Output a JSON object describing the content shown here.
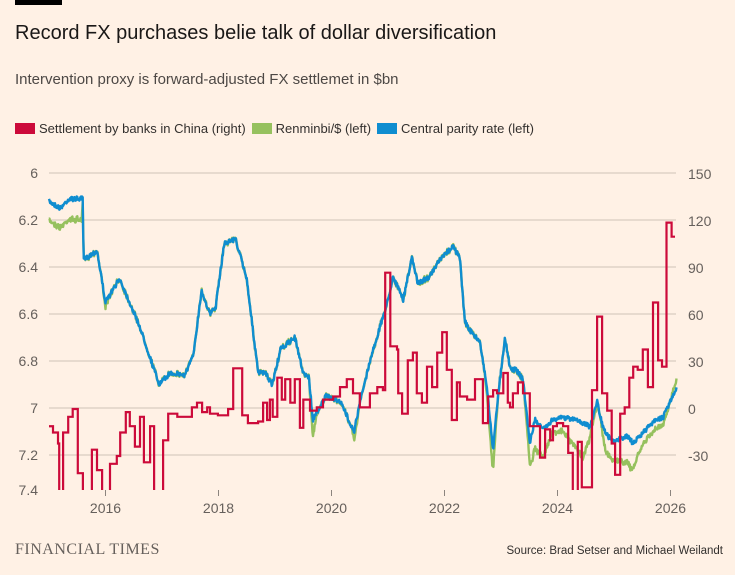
{
  "header": {
    "title": "Record FX purchases belie talk of dollar diversification",
    "subtitle": "Intervention proxy is forward-adjusted FX settlemet in $bn"
  },
  "footer": {
    "brand": "FINANCIAL TIMES",
    "source": "Source: Brad Setser and Michael Weilandt"
  },
  "chart_data": {
    "type": "line",
    "title": "Record FX purchases belie talk of dollar diversification",
    "subtitle": "Intervention proxy is forward-adjusted FX settlemet in $bn",
    "legend_placement": "top-left",
    "grid": true,
    "x_ticks": [
      "2016",
      "2018",
      "2020",
      "2022",
      "2024",
      "2026"
    ],
    "x_tick_values": [
      2016,
      2018,
      2020,
      2022,
      2024,
      2026
    ],
    "xlim": [
      2015.0,
      2026.12
    ],
    "left_axis": {
      "ticks": [
        "6",
        "6.2",
        "6.4",
        "6.6",
        "6.8",
        "7",
        "7.2",
        "7.4"
      ],
      "tick_values": [
        6,
        6.2,
        6.4,
        6.6,
        6.8,
        7,
        7.2,
        7.4
      ],
      "ylim": [
        6,
        7.4
      ],
      "inverted": true
    },
    "right_axis": {
      "ticks": [
        "150",
        "120",
        "90",
        "60",
        "30",
        "0",
        "-30"
      ],
      "tick_values": [
        150,
        120,
        90,
        60,
        30,
        0,
        -30
      ],
      "ylim": [
        -52,
        150
      ]
    },
    "series": [
      {
        "name": "Settlement by banks in China (right)",
        "color": "#cc0a3a",
        "axis": "right",
        "style": "step",
        "points": [
          [
            2015.0,
            -11
          ],
          [
            2015.07,
            -15
          ],
          [
            2015.16,
            -22
          ],
          [
            2015.18,
            -60
          ],
          [
            2015.25,
            -15
          ],
          [
            2015.34,
            -5
          ],
          [
            2015.42,
            0
          ],
          [
            2015.51,
            -41
          ],
          [
            2015.6,
            -60
          ],
          [
            2015.76,
            -26
          ],
          [
            2015.85,
            -39
          ],
          [
            2015.94,
            -60
          ],
          [
            2016.08,
            -35
          ],
          [
            2016.2,
            -30
          ],
          [
            2016.26,
            -15
          ],
          [
            2016.36,
            -2
          ],
          [
            2016.43,
            -11
          ],
          [
            2016.52,
            -24
          ],
          [
            2016.61,
            -5
          ],
          [
            2016.68,
            -34
          ],
          [
            2016.79,
            -11
          ],
          [
            2016.86,
            -60
          ],
          [
            2017.02,
            -20
          ],
          [
            2017.11,
            -3
          ],
          [
            2017.27,
            -5
          ],
          [
            2017.53,
            1
          ],
          [
            2017.62,
            4
          ],
          [
            2017.71,
            -2
          ],
          [
            2017.8,
            1
          ],
          [
            2017.85,
            -3
          ],
          [
            2017.99,
            -4
          ],
          [
            2018.17,
            0
          ],
          [
            2018.26,
            26
          ],
          [
            2018.42,
            -4
          ],
          [
            2018.52,
            -9
          ],
          [
            2018.7,
            -8
          ],
          [
            2018.79,
            4
          ],
          [
            2018.86,
            -7
          ],
          [
            2018.91,
            6
          ],
          [
            2018.96,
            -5
          ],
          [
            2019.04,
            20
          ],
          [
            2019.12,
            6
          ],
          [
            2019.18,
            19
          ],
          [
            2019.27,
            4
          ],
          [
            2019.35,
            19
          ],
          [
            2019.44,
            -12
          ],
          [
            2019.5,
            6
          ],
          [
            2019.62,
            -1
          ],
          [
            2019.74,
            1
          ],
          [
            2019.85,
            6
          ],
          [
            2020.03,
            8
          ],
          [
            2020.15,
            14
          ],
          [
            2020.27,
            19
          ],
          [
            2020.38,
            10
          ],
          [
            2020.5,
            1
          ],
          [
            2020.68,
            10
          ],
          [
            2020.81,
            14
          ],
          [
            2020.91,
            12
          ],
          [
            2020.95,
            87
          ],
          [
            2021.04,
            40
          ],
          [
            2021.16,
            38
          ],
          [
            2021.18,
            10
          ],
          [
            2021.25,
            -3
          ],
          [
            2021.35,
            31
          ],
          [
            2021.44,
            36
          ],
          [
            2021.51,
            10
          ],
          [
            2021.6,
            4
          ],
          [
            2021.69,
            27
          ],
          [
            2021.78,
            14
          ],
          [
            2021.87,
            36
          ],
          [
            2021.96,
            49
          ],
          [
            2022.04,
            25
          ],
          [
            2022.13,
            -7
          ],
          [
            2022.22,
            17
          ],
          [
            2022.27,
            8
          ],
          [
            2022.4,
            6
          ],
          [
            2022.54,
            19
          ],
          [
            2022.68,
            -9
          ],
          [
            2022.77,
            8
          ],
          [
            2022.86,
            12
          ],
          [
            2022.93,
            10
          ],
          [
            2023.04,
            23
          ],
          [
            2023.12,
            4
          ],
          [
            2023.16,
            1
          ],
          [
            2023.21,
            10
          ],
          [
            2023.3,
            17
          ],
          [
            2023.39,
            10
          ],
          [
            2023.51,
            -11
          ],
          [
            2023.69,
            -31
          ],
          [
            2023.78,
            -13
          ],
          [
            2023.87,
            -20
          ],
          [
            2023.92,
            -11
          ],
          [
            2023.99,
            -9
          ],
          [
            2024.1,
            -11
          ],
          [
            2024.19,
            -28
          ],
          [
            2024.27,
            -55
          ],
          [
            2024.36,
            -21
          ],
          [
            2024.43,
            -50
          ],
          [
            2024.61,
            12
          ],
          [
            2024.7,
            59
          ],
          [
            2024.79,
            10
          ],
          [
            2024.88,
            -1
          ],
          [
            2024.96,
            -22
          ],
          [
            2025.02,
            -42
          ],
          [
            2025.11,
            -3
          ],
          [
            2025.19,
            1
          ],
          [
            2025.27,
            20
          ],
          [
            2025.34,
            27
          ],
          [
            2025.42,
            25
          ],
          [
            2025.51,
            38
          ],
          [
            2025.6,
            14
          ],
          [
            2025.69,
            68
          ],
          [
            2025.78,
            31
          ],
          [
            2025.85,
            27
          ],
          [
            2025.93,
            119
          ],
          [
            2026.02,
            110
          ],
          [
            2026.08,
            110
          ]
        ]
      },
      {
        "name": "Renminbi/$ (left)",
        "color": "#96c15e",
        "axis": "left",
        "style": "line",
        "offset_from_parity": [
          [
            2015.0,
            0.08
          ],
          [
            2015.58,
            0.09
          ],
          [
            2015.6,
            0
          ],
          [
            2015.95,
            0
          ],
          [
            2016.0,
            0.02
          ],
          [
            2016.1,
            0
          ],
          [
            2019.6,
            0
          ],
          [
            2019.67,
            0.07
          ],
          [
            2019.75,
            0
          ],
          [
            2020.35,
            0
          ],
          [
            2020.42,
            0.04
          ],
          [
            2020.5,
            0
          ],
          [
            2022.7,
            0
          ],
          [
            2022.85,
            0.09
          ],
          [
            2022.95,
            0
          ],
          [
            2023.4,
            0
          ],
          [
            2023.55,
            0.12
          ],
          [
            2023.75,
            0.12
          ],
          [
            2023.9,
            0.05
          ],
          [
            2024.1,
            0.06
          ],
          [
            2024.45,
            0.15
          ],
          [
            2024.6,
            0.03
          ],
          [
            2024.75,
            0
          ],
          [
            2024.85,
            0.08
          ],
          [
            2025.0,
            0.08
          ],
          [
            2025.3,
            0.12
          ],
          [
            2025.5,
            0.05
          ],
          [
            2025.9,
            0.03
          ],
          [
            2026.11,
            -0.04
          ]
        ]
      },
      {
        "name": "Central parity rate (left)",
        "color": "#0f8dd0",
        "axis": "left",
        "style": "line",
        "points": [
          [
            2015.0,
            6.12
          ],
          [
            2015.2,
            6.15
          ],
          [
            2015.35,
            6.11
          ],
          [
            2015.6,
            6.11
          ],
          [
            2015.61,
            6.37
          ],
          [
            2015.85,
            6.33
          ],
          [
            2016.0,
            6.55
          ],
          [
            2016.25,
            6.45
          ],
          [
            2016.6,
            6.65
          ],
          [
            2016.95,
            6.9
          ],
          [
            2017.15,
            6.85
          ],
          [
            2017.4,
            6.86
          ],
          [
            2017.55,
            6.78
          ],
          [
            2017.7,
            6.5
          ],
          [
            2017.85,
            6.6
          ],
          [
            2017.95,
            6.57
          ],
          [
            2018.1,
            6.3
          ],
          [
            2018.3,
            6.28
          ],
          [
            2018.5,
            6.45
          ],
          [
            2018.7,
            6.85
          ],
          [
            2018.82,
            6.85
          ],
          [
            2018.95,
            6.9
          ],
          [
            2019.1,
            6.75
          ],
          [
            2019.35,
            6.7
          ],
          [
            2019.5,
            6.85
          ],
          [
            2019.6,
            6.87
          ],
          [
            2019.67,
            7.05
          ],
          [
            2019.9,
            6.95
          ],
          [
            2020.15,
            6.97
          ],
          [
            2020.4,
            7.1
          ],
          [
            2020.5,
            6.98
          ],
          [
            2020.68,
            6.8
          ],
          [
            2021.0,
            6.54
          ],
          [
            2021.09,
            6.44
          ],
          [
            2021.27,
            6.54
          ],
          [
            2021.42,
            6.36
          ],
          [
            2021.53,
            6.47
          ],
          [
            2021.74,
            6.44
          ],
          [
            2021.92,
            6.37
          ],
          [
            2022.15,
            6.31
          ],
          [
            2022.27,
            6.36
          ],
          [
            2022.36,
            6.63
          ],
          [
            2022.45,
            6.67
          ],
          [
            2022.63,
            6.72
          ],
          [
            2022.75,
            6.91
          ],
          [
            2022.86,
            7.18
          ],
          [
            2022.95,
            6.94
          ],
          [
            2023.07,
            6.7
          ],
          [
            2023.16,
            6.83
          ],
          [
            2023.28,
            6.84
          ],
          [
            2023.39,
            6.88
          ],
          [
            2023.51,
            7.15
          ],
          [
            2023.6,
            7.05
          ],
          [
            2023.73,
            7.09
          ],
          [
            2023.92,
            7.05
          ],
          [
            2024.04,
            7.04
          ],
          [
            2024.35,
            7.05
          ],
          [
            2024.58,
            7.08
          ],
          [
            2024.7,
            6.97
          ],
          [
            2024.8,
            7.08
          ],
          [
            2024.89,
            7.12
          ],
          [
            2024.98,
            7.14
          ],
          [
            2025.23,
            7.12
          ],
          [
            2025.34,
            7.15
          ],
          [
            2025.69,
            7.06
          ],
          [
            2025.87,
            7.04
          ],
          [
            2026.11,
            6.91
          ]
        ]
      }
    ]
  }
}
